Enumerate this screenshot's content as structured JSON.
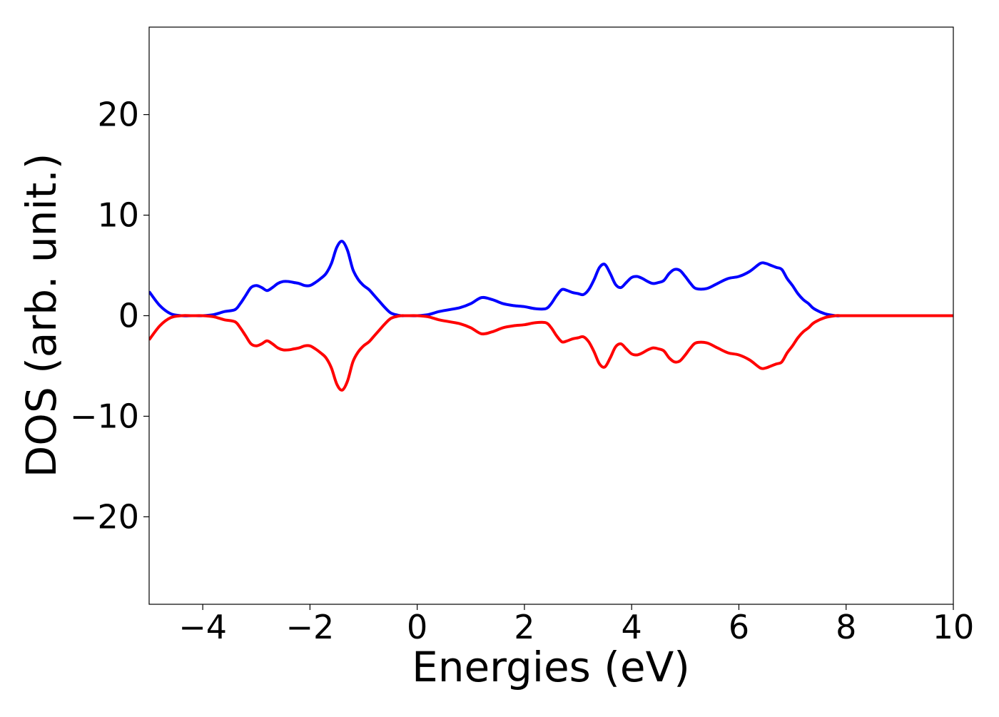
{
  "chart_data": {
    "type": "line",
    "title": "",
    "xlabel": "Energies (eV)",
    "ylabel": "DOS (arb. unit.)",
    "xlim": [
      -5,
      10
    ],
    "ylim": [
      -28.7,
      28.7
    ],
    "xticks": [
      -4,
      -2,
      0,
      2,
      4,
      6,
      8,
      10
    ],
    "xtick_labels": [
      "−4",
      "−2",
      "0",
      "2",
      "4",
      "6",
      "8",
      "10"
    ],
    "yticks": [
      -20,
      -10,
      0,
      10,
      20
    ],
    "ytick_labels": [
      "−20",
      "−10",
      "0",
      "10",
      "20"
    ],
    "grid": false,
    "legend": "none",
    "x": [
      -5.0,
      -4.8,
      -4.6,
      -4.4,
      -4.2,
      -4.0,
      -3.8,
      -3.6,
      -3.4,
      -3.3,
      -3.2,
      -3.1,
      -3.0,
      -2.9,
      -2.8,
      -2.7,
      -2.6,
      -2.5,
      -2.4,
      -2.3,
      -2.2,
      -2.1,
      -2.0,
      -1.9,
      -1.8,
      -1.7,
      -1.6,
      -1.5,
      -1.4,
      -1.3,
      -1.2,
      -1.1,
      -1.0,
      -0.9,
      -0.8,
      -0.7,
      -0.6,
      -0.5,
      -0.4,
      -0.3,
      -0.2,
      0.0,
      0.2,
      0.4,
      0.6,
      0.8,
      1.0,
      1.2,
      1.4,
      1.6,
      1.8,
      2.0,
      2.2,
      2.4,
      2.5,
      2.6,
      2.7,
      2.8,
      2.9,
      3.0,
      3.1,
      3.2,
      3.3,
      3.4,
      3.5,
      3.6,
      3.7,
      3.8,
      3.9,
      4.0,
      4.1,
      4.2,
      4.3,
      4.4,
      4.5,
      4.6,
      4.7,
      4.8,
      4.9,
      5.0,
      5.1,
      5.2,
      5.4,
      5.6,
      5.8,
      6.0,
      6.2,
      6.4,
      6.5,
      6.6,
      6.7,
      6.8,
      6.9,
      7.0,
      7.1,
      7.2,
      7.3,
      7.4,
      7.6,
      7.8,
      7.9,
      8.0,
      8.1,
      8.2,
      8.4,
      8.6,
      8.8,
      9.0,
      9.5,
      10.0
    ],
    "series": [
      {
        "color": "#0000ff",
        "values": [
          2.4,
          1.0,
          0.2,
          0.0,
          0.0,
          0.0,
          0.1,
          0.4,
          0.6,
          1.2,
          2.0,
          2.8,
          3.0,
          2.8,
          2.5,
          2.8,
          3.2,
          3.4,
          3.4,
          3.3,
          3.2,
          3.0,
          3.0,
          3.3,
          3.7,
          4.2,
          5.2,
          6.8,
          7.4,
          6.5,
          4.6,
          3.6,
          3.0,
          2.6,
          2.0,
          1.4,
          0.8,
          0.3,
          0.1,
          0.0,
          0.0,
          0.0,
          0.1,
          0.4,
          0.6,
          0.8,
          1.2,
          1.8,
          1.6,
          1.2,
          1.0,
          0.9,
          0.7,
          0.7,
          1.2,
          2.0,
          2.6,
          2.5,
          2.3,
          2.2,
          2.1,
          2.6,
          3.6,
          4.8,
          5.1,
          4.2,
          3.1,
          2.8,
          3.3,
          3.8,
          3.9,
          3.7,
          3.4,
          3.2,
          3.3,
          3.5,
          4.2,
          4.6,
          4.5,
          3.9,
          3.2,
          2.7,
          2.7,
          3.2,
          3.7,
          3.9,
          4.4,
          5.2,
          5.2,
          5.0,
          4.8,
          4.6,
          3.7,
          3.0,
          2.2,
          1.6,
          1.2,
          0.7,
          0.2,
          0.0,
          0.0,
          0.0,
          0.0,
          0.0,
          0.0,
          0.0,
          0.0,
          0.0,
          0.0,
          0.0
        ]
      },
      {
        "color": "#ff0000",
        "values": [
          -2.4,
          -1.0,
          -0.2,
          0.0,
          0.0,
          0.0,
          -0.1,
          -0.4,
          -0.6,
          -1.2,
          -2.0,
          -2.8,
          -3.0,
          -2.8,
          -2.5,
          -2.8,
          -3.2,
          -3.4,
          -3.4,
          -3.3,
          -3.2,
          -3.0,
          -3.0,
          -3.3,
          -3.7,
          -4.2,
          -5.2,
          -6.8,
          -7.4,
          -6.5,
          -4.6,
          -3.6,
          -3.0,
          -2.6,
          -2.0,
          -1.4,
          -0.8,
          -0.3,
          -0.1,
          0.0,
          0.0,
          0.0,
          -0.1,
          -0.4,
          -0.6,
          -0.8,
          -1.2,
          -1.8,
          -1.6,
          -1.2,
          -1.0,
          -0.9,
          -0.7,
          -0.7,
          -1.2,
          -2.0,
          -2.6,
          -2.5,
          -2.3,
          -2.2,
          -2.1,
          -2.6,
          -3.6,
          -4.8,
          -5.1,
          -4.2,
          -3.1,
          -2.8,
          -3.3,
          -3.8,
          -3.9,
          -3.7,
          -3.4,
          -3.2,
          -3.3,
          -3.5,
          -4.2,
          -4.6,
          -4.5,
          -3.9,
          -3.2,
          -2.7,
          -2.7,
          -3.2,
          -3.7,
          -3.9,
          -4.4,
          -5.2,
          -5.2,
          -5.0,
          -4.8,
          -4.6,
          -3.7,
          -3.0,
          -2.2,
          -1.6,
          -1.2,
          -0.7,
          -0.2,
          0.0,
          0.0,
          0.0,
          0.0,
          0.0,
          0.0,
          0.0,
          0.0,
          0.0,
          0.0,
          0.0
        ]
      }
    ]
  }
}
